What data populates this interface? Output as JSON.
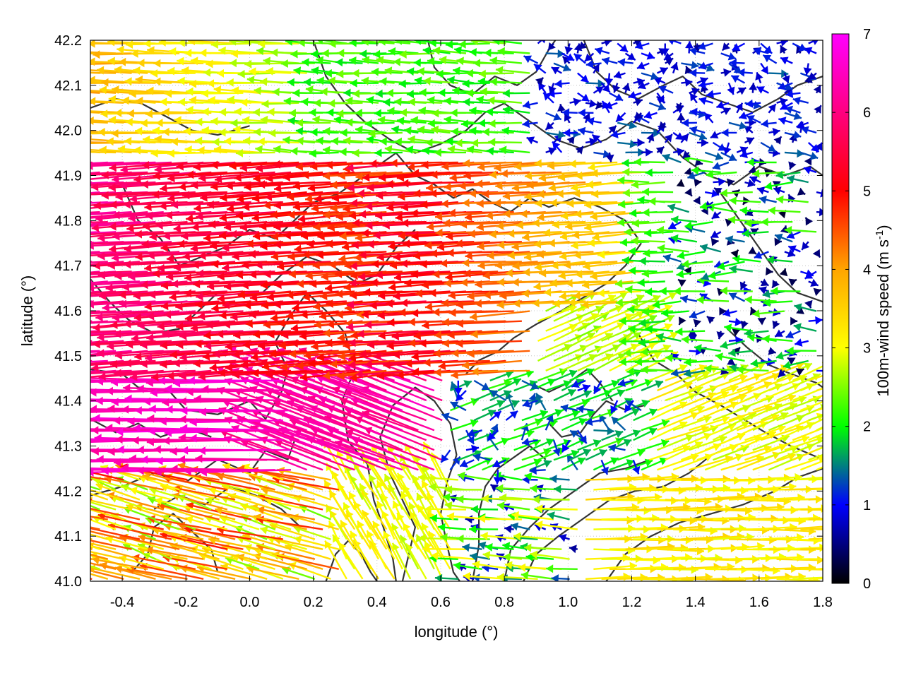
{
  "chart_data": {
    "type": "vector-field",
    "title": "",
    "xlabel": "longitude (°)",
    "ylabel": "latitude (°)",
    "xlim": [
      -0.5,
      1.8
    ],
    "ylim": [
      41.0,
      42.2
    ],
    "xticks": [
      -0.4,
      -0.2,
      0.0,
      0.2,
      0.4,
      0.6,
      0.8,
      1.0,
      1.2,
      1.4,
      1.6,
      1.8
    ],
    "xtick_labels": [
      "-0.4",
      "-0.2",
      "0.0",
      "0.2",
      "0.4",
      "0.6",
      "0.8",
      "1.0",
      "1.2",
      "1.4",
      "1.6",
      "1.8"
    ],
    "yticks": [
      41.0,
      41.1,
      41.2,
      41.3,
      41.4,
      41.5,
      41.6,
      41.7,
      41.8,
      41.9,
      42.0,
      42.1,
      42.2
    ],
    "ytick_labels": [
      "41.0",
      "41.1",
      "41.2",
      "41.3",
      "41.4",
      "41.5",
      "41.6",
      "41.7",
      "41.8",
      "41.9",
      "42.0",
      "42.1",
      "42.2"
    ],
    "grid": "dotted",
    "colorbar": {
      "label_main": "100m-wind speed (m s",
      "label_exp": "-1",
      "label_close": ")",
      "range": [
        0,
        7
      ],
      "ticks": [
        0,
        1,
        2,
        3,
        4,
        5,
        6,
        7
      ],
      "tick_labels": [
        "0",
        "1",
        "2",
        "3",
        "4",
        "5",
        "6",
        "7"
      ],
      "colors": [
        "#000000",
        "#0000ff",
        "#00ff00",
        "#ffff00",
        "#ffa500",
        "#ff0000",
        "#ff00ff"
      ]
    },
    "contours": [
      [
        [
          -0.37,
          41.02
        ],
        [
          -0.32,
          41.06
        ],
        [
          -0.3,
          41.12
        ],
        [
          -0.24,
          41.15
        ],
        [
          -0.18,
          41.11
        ],
        [
          -0.12,
          41.07
        ],
        [
          -0.1,
          41.02
        ]
      ],
      [
        [
          -0.5,
          41.19
        ],
        [
          -0.4,
          41.21
        ],
        [
          -0.3,
          41.24
        ],
        [
          -0.2,
          41.22
        ],
        [
          -0.1,
          41.27
        ],
        [
          0.0,
          41.24
        ],
        [
          0.05,
          41.29
        ],
        [
          0.12,
          41.27
        ],
        [
          0.14,
          41.31
        ]
      ],
      [
        [
          -0.5,
          41.47
        ],
        [
          -0.4,
          41.46
        ],
        [
          -0.35,
          41.43
        ],
        [
          -0.25,
          41.42
        ],
        [
          -0.2,
          41.38
        ],
        [
          -0.1,
          41.37
        ],
        [
          0.0,
          41.4
        ],
        [
          0.05,
          41.36
        ],
        [
          0.1,
          41.42
        ],
        [
          0.12,
          41.47
        ],
        [
          0.08,
          41.53
        ],
        [
          0.12,
          41.58
        ]
      ],
      [
        [
          -0.5,
          41.36
        ],
        [
          -0.42,
          41.33
        ],
        [
          -0.35,
          41.35
        ],
        [
          -0.28,
          41.32
        ],
        [
          -0.2,
          41.34
        ],
        [
          -0.12,
          41.32
        ]
      ],
      [
        [
          0.12,
          41.58
        ],
        [
          0.18,
          41.64
        ],
        [
          0.24,
          41.6
        ],
        [
          0.3,
          41.55
        ],
        [
          0.33,
          41.47
        ],
        [
          0.29,
          41.4
        ],
        [
          0.31,
          41.31
        ],
        [
          0.37,
          41.26
        ],
        [
          0.39,
          41.18
        ],
        [
          0.42,
          41.12
        ],
        [
          0.45,
          41.05
        ],
        [
          0.46,
          41.0
        ]
      ],
      [
        [
          0.48,
          41.0
        ],
        [
          0.5,
          41.06
        ],
        [
          0.52,
          41.12
        ],
        [
          0.48,
          41.18
        ],
        [
          0.44,
          41.24
        ],
        [
          0.41,
          41.32
        ],
        [
          0.45,
          41.39
        ],
        [
          0.52,
          41.43
        ],
        [
          0.58,
          41.4
        ],
        [
          0.63,
          41.35
        ],
        [
          0.65,
          41.28
        ]
      ],
      [
        [
          0.65,
          41.28
        ],
        [
          0.62,
          41.22
        ],
        [
          0.6,
          41.15
        ],
        [
          0.62,
          41.08
        ],
        [
          0.64,
          41.02
        ],
        [
          0.66,
          41.0
        ]
      ],
      [
        [
          0.7,
          41.0
        ],
        [
          0.72,
          41.08
        ],
        [
          0.72,
          41.15
        ],
        [
          0.74,
          41.21
        ],
        [
          0.78,
          41.25
        ],
        [
          0.84,
          41.28
        ],
        [
          0.88,
          41.3
        ],
        [
          0.93,
          41.27
        ]
      ],
      [
        [
          0.68,
          41.46
        ],
        [
          0.72,
          41.49
        ],
        [
          0.78,
          41.51
        ],
        [
          0.83,
          41.54
        ],
        [
          0.9,
          41.57
        ],
        [
          0.98,
          41.6
        ],
        [
          1.05,
          41.63
        ],
        [
          1.12,
          41.66
        ],
        [
          1.18,
          41.7
        ],
        [
          1.23,
          41.75
        ]
      ],
      [
        [
          0.8,
          41.0
        ],
        [
          0.82,
          41.07
        ],
        [
          0.88,
          41.12
        ],
        [
          0.94,
          41.16
        ],
        [
          1.02,
          41.2
        ],
        [
          1.1,
          41.24
        ],
        [
          1.18,
          41.25
        ],
        [
          1.26,
          41.27
        ]
      ],
      [
        [
          0.86,
          41.0
        ],
        [
          0.9,
          41.06
        ],
        [
          0.97,
          41.1
        ],
        [
          1.05,
          41.14
        ],
        [
          1.13,
          41.18
        ],
        [
          1.21,
          41.2
        ],
        [
          1.3,
          41.21
        ],
        [
          1.38,
          41.24
        ],
        [
          1.45,
          41.28
        ],
        [
          1.52,
          41.3
        ]
      ],
      [
        [
          1.12,
          41.0
        ],
        [
          1.18,
          41.06
        ],
        [
          1.26,
          41.1
        ],
        [
          1.35,
          41.13
        ],
        [
          1.45,
          41.15
        ],
        [
          1.55,
          41.17
        ],
        [
          1.65,
          41.2
        ],
        [
          1.72,
          41.23
        ],
        [
          1.8,
          41.25
        ]
      ],
      [
        [
          0.94,
          41.35
        ],
        [
          0.98,
          41.32
        ],
        [
          1.04,
          41.33
        ],
        [
          1.08,
          41.37
        ],
        [
          1.12,
          41.4
        ],
        [
          1.18,
          41.38
        ],
        [
          1.24,
          41.39
        ]
      ],
      [
        [
          1.22,
          41.55
        ],
        [
          1.27,
          41.49
        ],
        [
          1.34,
          41.46
        ],
        [
          1.4,
          41.42
        ],
        [
          1.48,
          41.39
        ],
        [
          1.55,
          41.36
        ],
        [
          1.62,
          41.33
        ],
        [
          1.7,
          41.3
        ],
        [
          1.8,
          41.27
        ]
      ],
      [
        [
          -0.4,
          41.88
        ],
        [
          -0.35,
          41.8
        ],
        [
          -0.28,
          41.76
        ],
        [
          -0.22,
          41.7
        ],
        [
          -0.15,
          41.72
        ],
        [
          -0.08,
          41.74
        ],
        [
          0.0,
          41.78
        ],
        [
          0.08,
          41.76
        ],
        [
          0.14,
          41.8
        ],
        [
          0.2,
          41.84
        ],
        [
          0.28,
          41.86
        ],
        [
          0.36,
          41.9
        ]
      ],
      [
        [
          -0.5,
          41.67
        ],
        [
          -0.44,
          41.62
        ],
        [
          -0.38,
          41.58
        ],
        [
          -0.3,
          41.55
        ],
        [
          -0.22,
          41.56
        ],
        [
          -0.16,
          41.6
        ],
        [
          -0.1,
          41.64
        ]
      ],
      [
        [
          0.04,
          41.64
        ],
        [
          0.1,
          41.68
        ],
        [
          0.18,
          41.72
        ],
        [
          0.26,
          41.7
        ],
        [
          0.34,
          41.66
        ],
        [
          0.4,
          41.68
        ],
        [
          0.46,
          41.74
        ],
        [
          0.52,
          41.78
        ]
      ],
      [
        [
          0.4,
          41.92
        ],
        [
          0.46,
          41.95
        ],
        [
          0.52,
          41.9
        ],
        [
          0.58,
          41.88
        ],
        [
          0.64,
          41.85
        ],
        [
          0.7,
          41.87
        ],
        [
          0.76,
          41.84
        ],
        [
          0.82,
          41.82
        ],
        [
          0.88,
          41.85
        ],
        [
          0.94,
          41.83
        ],
        [
          1.02,
          41.85
        ],
        [
          1.1,
          41.83
        ],
        [
          1.18,
          41.8
        ],
        [
          1.22,
          41.76
        ]
      ],
      [
        [
          -0.5,
          42.05
        ],
        [
          -0.42,
          42.07
        ],
        [
          -0.34,
          42.06
        ],
        [
          -0.26,
          42.03
        ],
        [
          -0.18,
          42.0
        ],
        [
          -0.1,
          41.99
        ],
        [
          0.0,
          42.01
        ]
      ],
      [
        [
          0.2,
          42.2
        ],
        [
          0.24,
          42.12
        ],
        [
          0.3,
          42.06
        ],
        [
          0.36,
          42.02
        ],
        [
          0.44,
          41.98
        ],
        [
          0.52,
          41.95
        ],
        [
          0.6,
          41.97
        ],
        [
          0.68,
          42.0
        ],
        [
          0.74,
          42.04
        ],
        [
          0.8,
          42.06
        ],
        [
          0.88,
          42.02
        ],
        [
          0.96,
          41.98
        ],
        [
          1.04,
          41.96
        ],
        [
          1.12,
          41.98
        ],
        [
          1.2,
          42.02
        ],
        [
          1.28,
          42.0
        ],
        [
          1.36,
          41.94
        ],
        [
          1.44,
          41.9
        ],
        [
          1.52,
          41.88
        ],
        [
          1.6,
          41.92
        ],
        [
          1.68,
          41.9
        ],
        [
          1.76,
          41.92
        ],
        [
          1.8,
          41.9
        ]
      ],
      [
        [
          0.56,
          42.2
        ],
        [
          0.58,
          42.14
        ],
        [
          0.63,
          42.1
        ],
        [
          0.7,
          42.08
        ],
        [
          0.77,
          42.12
        ],
        [
          0.84,
          42.1
        ],
        [
          0.9,
          42.13
        ],
        [
          0.94,
          42.18
        ],
        [
          0.96,
          42.2
        ]
      ],
      [
        [
          1.05,
          42.2
        ],
        [
          1.09,
          42.13
        ],
        [
          1.15,
          42.09
        ],
        [
          1.22,
          42.07
        ],
        [
          1.3,
          42.1
        ],
        [
          1.36,
          42.12
        ],
        [
          1.42,
          42.08
        ],
        [
          1.5,
          42.06
        ],
        [
          1.58,
          42.04
        ],
        [
          1.66,
          42.07
        ],
        [
          1.72,
          42.1
        ],
        [
          1.8,
          42.12
        ]
      ],
      [
        [
          1.48,
          41.86
        ],
        [
          1.54,
          41.8
        ],
        [
          1.6,
          41.74
        ],
        [
          1.66,
          41.68
        ],
        [
          1.72,
          41.64
        ],
        [
          1.8,
          41.62
        ]
      ],
      [
        [
          1.5,
          41.56
        ],
        [
          1.56,
          41.52
        ],
        [
          1.63,
          41.48
        ],
        [
          1.7,
          41.46
        ],
        [
          1.78,
          41.44
        ],
        [
          1.8,
          41.43
        ]
      ],
      [
        [
          -0.3,
          41.16
        ],
        [
          -0.22,
          41.19
        ],
        [
          -0.14,
          41.17
        ],
        [
          -0.06,
          41.21
        ],
        [
          0.02,
          41.19
        ],
        [
          0.1,
          41.16
        ],
        [
          0.16,
          41.12
        ]
      ],
      [
        [
          0.24,
          41.0
        ],
        [
          0.27,
          41.06
        ],
        [
          0.31,
          41.09
        ],
        [
          0.35,
          41.06
        ],
        [
          0.38,
          41.02
        ],
        [
          0.4,
          41.0
        ]
      ],
      [
        [
          0.88,
          41.44
        ],
        [
          0.94,
          41.42
        ],
        [
          1.0,
          41.44
        ],
        [
          1.06,
          41.47
        ],
        [
          1.1,
          41.44
        ],
        [
          1.14,
          41.4
        ]
      ]
    ],
    "vector_field": {
      "grid_dx": 0.05,
      "grid_dy": 0.022,
      "speed_units": "m s-1",
      "description": "per-cell u,v wind components computed from regional pattern"
    }
  }
}
